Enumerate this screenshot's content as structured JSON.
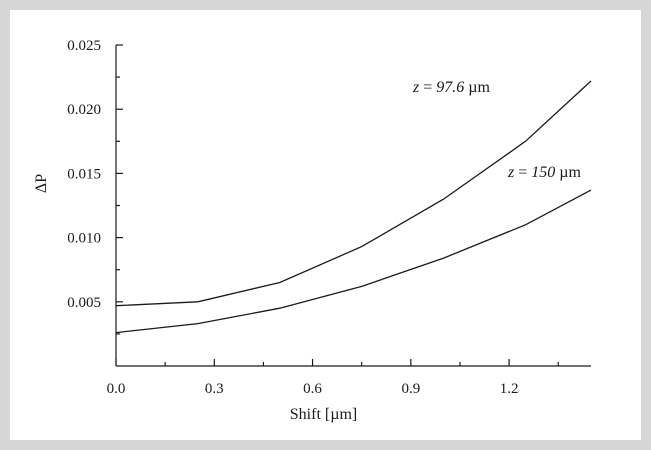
{
  "chart_data": {
    "type": "line",
    "xlabel": "Shift [µm]",
    "ylabel": "ΔP",
    "xlim": [
      0,
      1.45
    ],
    "ylim": [
      0,
      0.025
    ],
    "x_ticks": [
      "0.0",
      "0.3",
      "0.6",
      "0.9",
      "1.2"
    ],
    "x_tick_values": [
      0,
      0.3,
      0.6,
      0.9,
      1.2
    ],
    "y_ticks": [
      "0.005",
      "0.010",
      "0.015",
      "0.020",
      "0.025"
    ],
    "y_tick_values": [
      0.005,
      0.01,
      0.015,
      0.02,
      0.025
    ],
    "grid": false,
    "x": [
      0,
      0.25,
      0.5,
      0.75,
      1.0,
      1.25,
      1.45
    ],
    "series": [
      {
        "name": "z = 97.6 µm",
        "label_parts": [
          "z",
          " = ",
          "97.6",
          " µm"
        ],
        "values": [
          0.0047,
          0.005,
          0.0065,
          0.0093,
          0.013,
          0.0175,
          0.0222
        ]
      },
      {
        "name": "z = 150 µm",
        "label_parts": [
          "z",
          " = ",
          "150",
          " µm"
        ],
        "values": [
          0.0026,
          0.0033,
          0.0045,
          0.0062,
          0.0084,
          0.011,
          0.0137
        ]
      }
    ]
  }
}
